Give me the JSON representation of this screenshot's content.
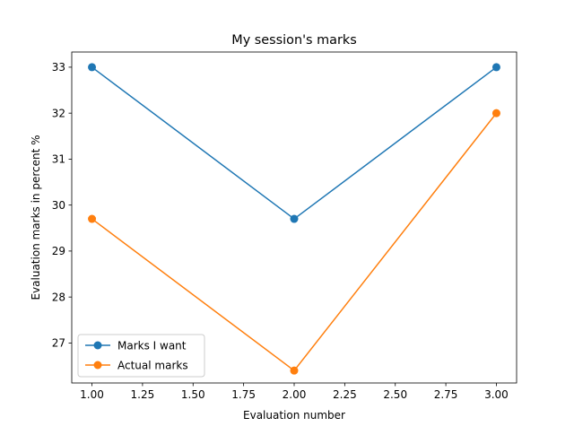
{
  "chart_data": {
    "type": "line",
    "title": "My session's marks",
    "xlabel": "Evaluation number",
    "ylabel": "Evaluation marks in percent %",
    "x": [
      1.0,
      2.0,
      3.0
    ],
    "series": [
      {
        "name": "Marks I want",
        "values": [
          33.0,
          29.7,
          33.0
        ],
        "color": "#1f77b4"
      },
      {
        "name": "Actual marks",
        "values": [
          29.7,
          26.4,
          32.0
        ],
        "color": "#ff7f0e"
      }
    ],
    "xlim": [
      0.9,
      3.1
    ],
    "ylim": [
      26.13,
      33.33
    ],
    "x_ticks": [
      "1.00",
      "1.25",
      "1.50",
      "1.75",
      "2.00",
      "2.25",
      "2.50",
      "2.75",
      "3.00"
    ],
    "y_ticks": [
      "27",
      "28",
      "29",
      "30",
      "31",
      "32",
      "33"
    ],
    "grid": false,
    "legend_position": "lower-left"
  }
}
